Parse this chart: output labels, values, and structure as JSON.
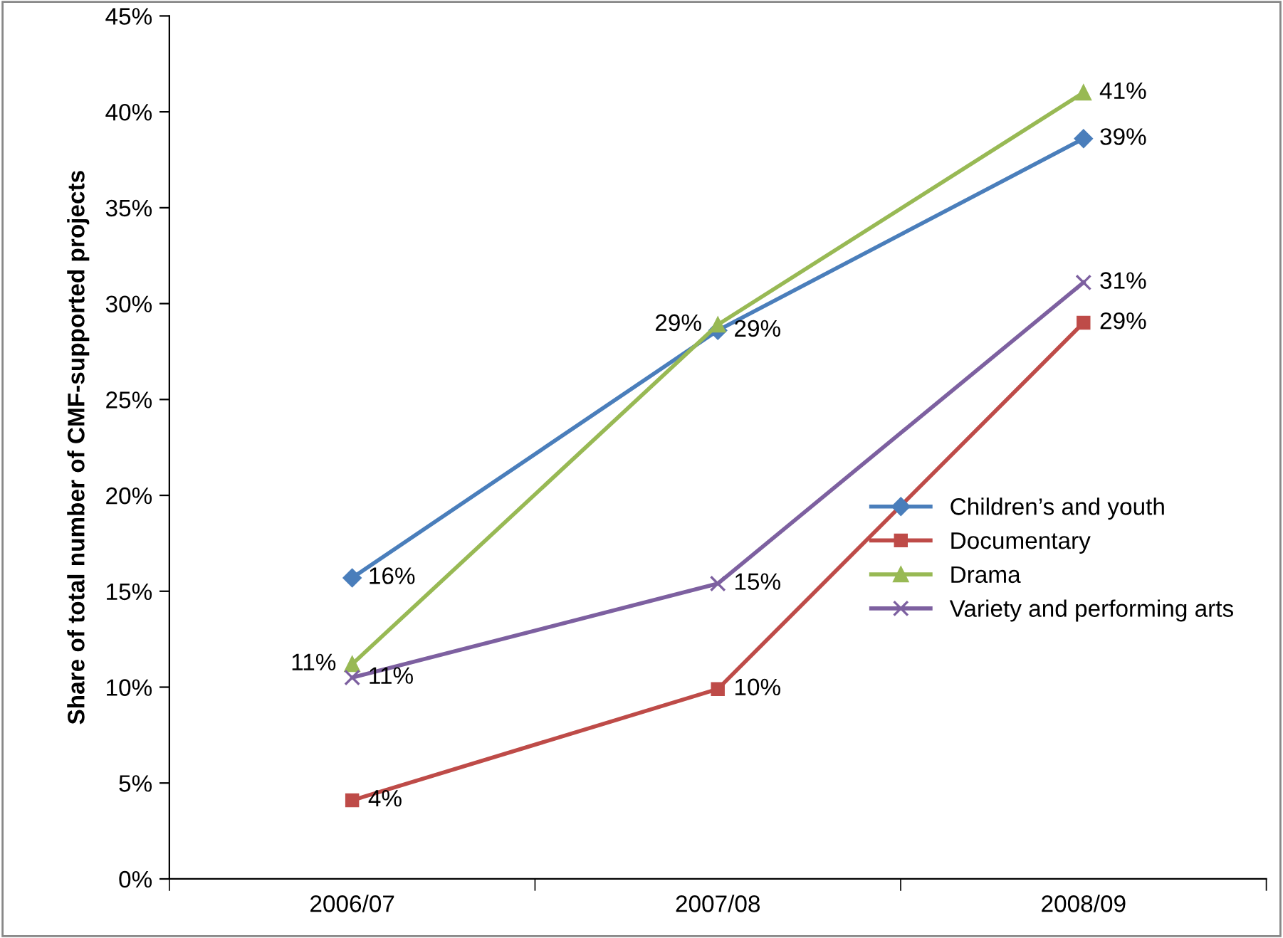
{
  "chart_data": {
    "type": "line",
    "ylabel": "Share of total number of CMF-supported projects",
    "categories": [
      "2006/07",
      "2007/08",
      "2008/09"
    ],
    "ylim": [
      0,
      45
    ],
    "yticks": [
      {
        "value": 0,
        "label": "0%"
      },
      {
        "value": 5,
        "label": "5%"
      },
      {
        "value": 10,
        "label": "10%"
      },
      {
        "value": 15,
        "label": "15%"
      },
      {
        "value": 20,
        "label": "20%"
      },
      {
        "value": 25,
        "label": "25%"
      },
      {
        "value": 30,
        "label": "30%"
      },
      {
        "value": 35,
        "label": "35%"
      },
      {
        "value": 40,
        "label": "40%"
      },
      {
        "value": 45,
        "label": "45%"
      }
    ],
    "legend": "right",
    "grid": false,
    "series": [
      {
        "name": "Children’s and youth",
        "color": "#4a7ebb",
        "marker": "diamond",
        "values": [
          15.7,
          28.6,
          38.6
        ],
        "value_labels": [
          "16%",
          "29%",
          "39%"
        ]
      },
      {
        "name": "Documentary",
        "color": "#be4b48",
        "marker": "square",
        "values": [
          4.1,
          9.9,
          29.0
        ],
        "value_labels": [
          "4%",
          "10%",
          "29%"
        ]
      },
      {
        "name": "Drama",
        "color": "#98b954",
        "marker": "triangle",
        "values": [
          11.2,
          28.9,
          41.0
        ],
        "value_labels": [
          "11%",
          "29%",
          "41%"
        ]
      },
      {
        "name": "Variety and performing arts",
        "color": "#7d60a0",
        "marker": "cross",
        "values": [
          10.5,
          15.4,
          31.1
        ],
        "value_labels": [
          "11%",
          "15%",
          "31%"
        ]
      }
    ]
  }
}
